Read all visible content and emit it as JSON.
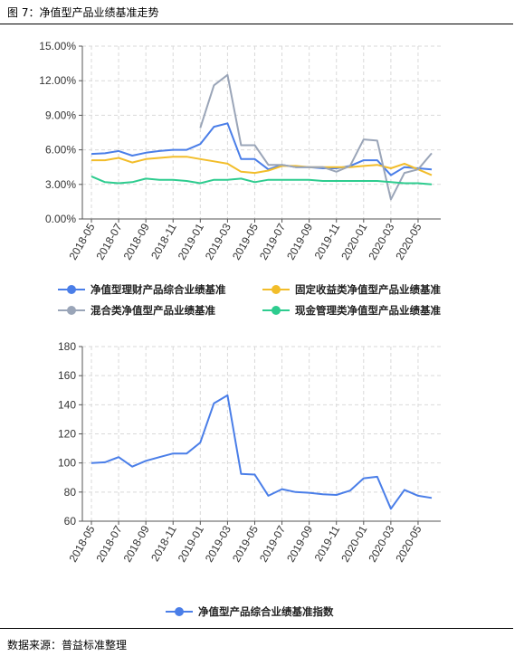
{
  "header": {
    "title": "图 7：净值型产品业绩基准走势"
  },
  "footer": {
    "source": "数据来源：普益标准整理"
  },
  "chart_data": [
    {
      "type": "line",
      "y_unit": "percent",
      "ylim": [
        0,
        15
      ],
      "y_ticks": [
        "0.00%",
        "3.00%",
        "6.00%",
        "9.00%",
        "12.00%",
        "15.00%"
      ],
      "x": [
        "2018-05",
        "2018-06",
        "2018-07",
        "2018-08",
        "2018-09",
        "2018-10",
        "2018-11",
        "2018-12",
        "2019-01",
        "2019-02",
        "2019-03",
        "2019-04",
        "2019-05",
        "2019-06",
        "2019-07",
        "2019-08",
        "2019-09",
        "2019-10",
        "2019-11",
        "2019-12",
        "2020-01",
        "2020-02",
        "2020-03",
        "2020-04",
        "2020-05",
        "2020-06"
      ],
      "x_tick_labels": [
        "2018-05",
        "2018-07",
        "2018-09",
        "2018-11",
        "2019-01",
        "2019-03",
        "2019-05",
        "2019-07",
        "2019-09",
        "2019-11",
        "2020-01",
        "2020-03",
        "2020-05"
      ],
      "grid": true,
      "legend_position": "bottom",
      "series": [
        {
          "name": "净值型理财产品综合业绩基准",
          "color": "#4a7ee8",
          "values": [
            5.65,
            5.7,
            5.9,
            5.5,
            5.75,
            5.9,
            6.0,
            6.0,
            6.5,
            8.0,
            8.3,
            5.2,
            5.2,
            4.3,
            4.7,
            4.5,
            4.5,
            4.4,
            4.4,
            4.6,
            5.1,
            5.1,
            3.8,
            4.5,
            4.4,
            4.3
          ]
        },
        {
          "name": "固定收益类净值型产品业绩基准",
          "color": "#f2bd2a",
          "values": [
            5.1,
            5.1,
            5.3,
            4.9,
            5.2,
            5.3,
            5.4,
            5.4,
            5.2,
            5.0,
            4.8,
            4.1,
            4.0,
            4.2,
            4.6,
            4.6,
            4.5,
            4.5,
            4.5,
            4.5,
            4.6,
            4.7,
            4.4,
            4.8,
            4.3,
            3.8
          ]
        },
        {
          "name": "混合类净值型产品业绩基准",
          "color": "#9aa5b8",
          "values": [
            null,
            null,
            null,
            null,
            null,
            null,
            null,
            null,
            7.9,
            11.6,
            12.5,
            6.4,
            6.4,
            4.7,
            4.7,
            4.5,
            4.5,
            4.5,
            4.1,
            4.6,
            6.9,
            6.8,
            1.7,
            4.0,
            4.3,
            5.7
          ]
        },
        {
          "name": "现金管理类净值型产品业绩基准",
          "color": "#2ecc8f",
          "values": [
            3.7,
            3.2,
            3.1,
            3.2,
            3.5,
            3.4,
            3.4,
            3.3,
            3.1,
            3.4,
            3.4,
            3.5,
            3.2,
            3.4,
            3.4,
            3.4,
            3.4,
            3.3,
            3.3,
            3.3,
            3.3,
            3.3,
            3.2,
            3.1,
            3.1,
            3.0
          ]
        }
      ]
    },
    {
      "type": "line",
      "ylim": [
        60,
        180
      ],
      "y_ticks": [
        "60",
        "80",
        "100",
        "120",
        "140",
        "160",
        "180"
      ],
      "x": [
        "2018-05",
        "2018-06",
        "2018-07",
        "2018-08",
        "2018-09",
        "2018-10",
        "2018-11",
        "2018-12",
        "2019-01",
        "2019-02",
        "2019-03",
        "2019-04",
        "2019-05",
        "2019-06",
        "2019-07",
        "2019-08",
        "2019-09",
        "2019-10",
        "2019-11",
        "2019-12",
        "2020-01",
        "2020-02",
        "2020-03",
        "2020-04",
        "2020-05",
        "2020-06"
      ],
      "x_tick_labels": [
        "2018-05",
        "2018-07",
        "2018-09",
        "2018-11",
        "2019-01",
        "2019-03",
        "2019-05",
        "2019-07",
        "2019-09",
        "2019-11",
        "2020-01",
        "2020-03",
        "2020-05"
      ],
      "grid": true,
      "legend_position": "bottom",
      "series": [
        {
          "name": "净值型产品综合业绩基准指数",
          "color": "#4a7ee8",
          "values": [
            100,
            100.5,
            104,
            97.5,
            101.5,
            104,
            106.5,
            106.5,
            114,
            141,
            146.5,
            92.5,
            92,
            77.5,
            82,
            80,
            79.5,
            78.5,
            78,
            81,
            89.5,
            90.5,
            68.5,
            81.5,
            77.5,
            76
          ]
        }
      ]
    }
  ]
}
